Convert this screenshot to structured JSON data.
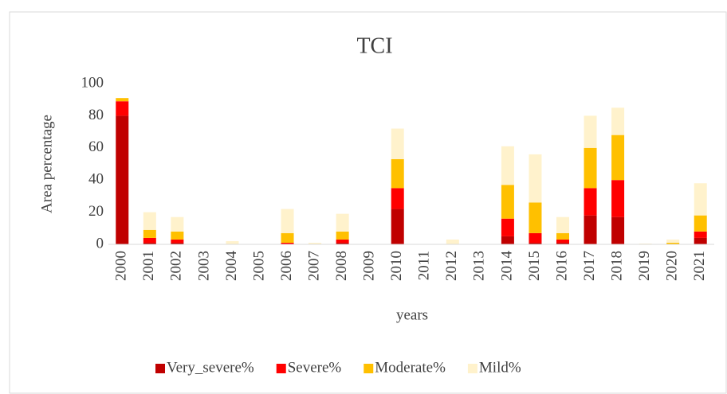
{
  "chart_data": {
    "type": "stacked_bar",
    "title": "TCI",
    "x_label": "years",
    "y_label": "Area percentage",
    "categories": [
      "2000",
      "2001",
      "2002",
      "2003",
      "2004",
      "2005",
      "2006",
      "2007",
      "2008",
      "2009",
      "2010",
      "2011",
      "2012",
      "2013",
      "2014",
      "2015",
      "2016",
      "2017",
      "2018",
      "2019",
      "2020",
      "2021"
    ],
    "series": [
      {
        "name": "Very_severe%",
        "color": "#c00000",
        "values": [
          80,
          1,
          1,
          0,
          0,
          0,
          0,
          0,
          1,
          0,
          22,
          0,
          0,
          0,
          5,
          1,
          1,
          18,
          17,
          0,
          0,
          4
        ]
      },
      {
        "name": "Severe%",
        "color": "#ff0000",
        "values": [
          9,
          3,
          2,
          0,
          0,
          0,
          1,
          0,
          2,
          0,
          13,
          0,
          0,
          0,
          11,
          6,
          2,
          17,
          23,
          0,
          0,
          4
        ]
      },
      {
        "name": "Moderate%",
        "color": "#ffc000",
        "values": [
          2,
          5,
          5,
          0,
          0,
          0,
          6,
          0,
          5,
          0,
          18,
          0,
          0,
          0,
          21,
          19,
          4,
          25,
          28,
          0,
          1,
          10
        ]
      },
      {
        "name": "Mild%",
        "color": "#fff2cc",
        "values": [
          0,
          11,
          9,
          0,
          2,
          0,
          15,
          1,
          11,
          0,
          19,
          0,
          3,
          0,
          24,
          30,
          10,
          20,
          17,
          0.5,
          2,
          20
        ]
      }
    ],
    "ylim": [
      0,
      100
    ],
    "yticks": [
      0,
      20,
      40,
      60,
      80,
      100
    ],
    "grid": false,
    "legend": "bottom"
  }
}
